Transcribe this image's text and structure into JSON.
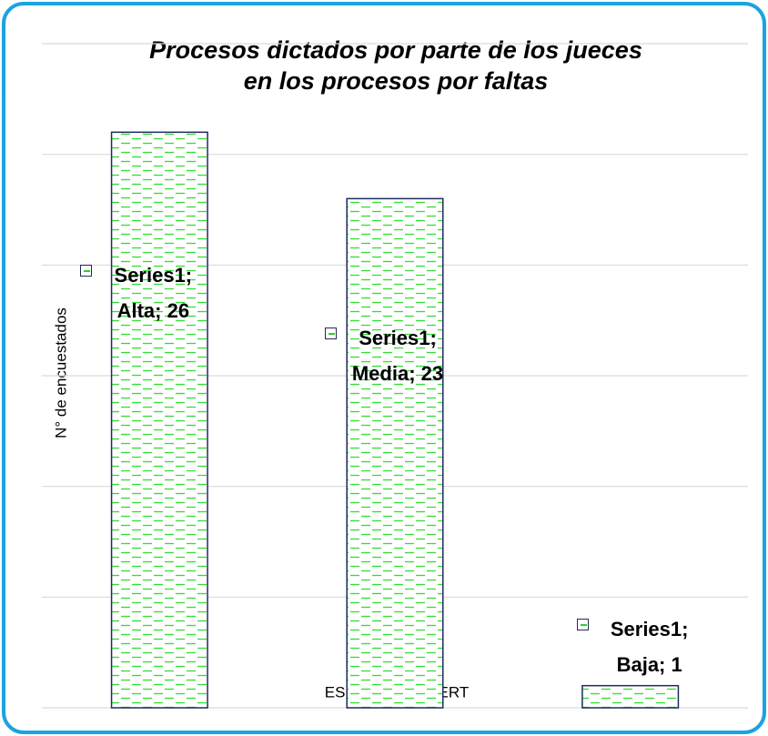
{
  "chart_data": {
    "type": "bar",
    "title": "Procesos dictados por parte de los jueces en los procesos por faltas",
    "xlabel": "ESCALA DE LIKERT",
    "ylabel": "N° de encuestados",
    "categories": [
      "Alta",
      "Media",
      "Baja"
    ],
    "series": [
      {
        "name": "Series1",
        "color": "#33dd33",
        "values": [
          26,
          23,
          1
        ],
        "value_labels": [
          "Series1; Alta; 26",
          "Series1; Media; 23",
          "Series1; Baja; 1"
        ]
      }
    ],
    "ylim": [
      0,
      30
    ],
    "yticks": [
      0,
      5,
      10,
      15,
      20,
      25,
      30
    ],
    "grid": true
  }
}
